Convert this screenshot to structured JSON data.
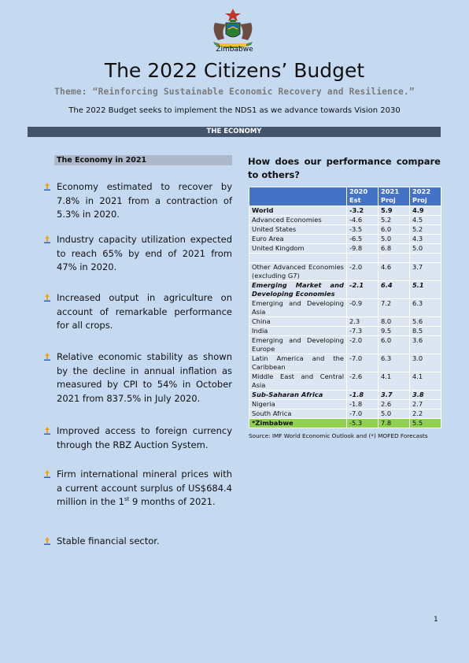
{
  "header": {
    "country": "Zimbabwe",
    "title": "The 2022 Citizens’ Budget",
    "theme": "Theme: “Reinforcing Sustainable Economic Recovery and Resilience.”",
    "subtitle": "The 2022 Budget seeks to implement the NDS1 as we advance towards Vision 2030"
  },
  "section_title": "THE ECONOMY",
  "left": {
    "heading": "The Economy in 2021",
    "bullets": [
      "Economy estimated to recover by 7.8% in 2021 from a contraction of 5.3% in 2020.",
      "Industry capacity utilization expected to reach 65% by end of 2021 from 47% in 2020.",
      "Increased output in agriculture on account of remarkable performance for all crops.",
      "Relative economic stability as shown by the decline in annual inflation as measured by CPI to 54% in October 2021 from 837.5% in July 2020.",
      "Improved access to foreign currency through the RBZ Auction System.",
      "Stable financial sector."
    ],
    "bullet6": {
      "pre": "Firm international mineral prices with a current account surplus of US$684.4 million in the 1",
      "sup": "st",
      "post": " 9 months of 2021."
    }
  },
  "right": {
    "heading": "How does our performance compare to others?",
    "table": {
      "columns": [
        "",
        "2020 Est",
        "2021 Proj",
        "2022 Proj"
      ],
      "rows": [
        {
          "label": "World",
          "v2020": "-3.2",
          "v2021": "5.9",
          "v2022": "4.9"
        },
        {
          "label": "Advanced Economies",
          "v2020": "-4.6",
          "v2021": "5.2",
          "v2022": "4.5"
        },
        {
          "label": "United States",
          "v2020": "-3.5",
          "v2021": "6.0",
          "v2022": "5.2"
        },
        {
          "label": "Euro Area",
          "v2020": "-6.5",
          "v2021": "5.0",
          "v2022": "4.3"
        },
        {
          "label": "United Kingdom",
          "v2020": "-9.8",
          "v2021": "6.8",
          "v2022": "5.0"
        },
        {
          "label": "",
          "v2020": "",
          "v2021": "",
          "v2022": ""
        },
        {
          "label": "Other Advanced Economies (excluding G7)",
          "v2020": "-2.0",
          "v2021": "4.6",
          "v2022": "3.7"
        },
        {
          "label": "Emerging Market and Developing Economies",
          "v2020": "-2.1",
          "v2021": "6.4",
          "v2022": "5.1"
        },
        {
          "label": "Emerging and Developing Asia",
          "v2020": "-0.9",
          "v2021": "7.2",
          "v2022": "6.3"
        },
        {
          "label": "China",
          "v2020": "2.3",
          "v2021": "8.0",
          "v2022": "5.6"
        },
        {
          "label": "India",
          "v2020": "-7.3",
          "v2021": "9.5",
          "v2022": "8.5"
        },
        {
          "label": "Emerging and Developing Europe",
          "v2020": "-2.0",
          "v2021": "6.0",
          "v2022": "3.6"
        },
        {
          "label": "Latin America and the Caribbean",
          "v2020": "-7.0",
          "v2021": "6.3",
          "v2022": "3.0"
        },
        {
          "label": "Middle East and Central Asia",
          "v2020": "-2.6",
          "v2021": "4.1",
          "v2022": "4.1"
        },
        {
          "label": "Sub-Saharan Africa",
          "v2020": "-1.8",
          "v2021": "3.7",
          "v2022": "3.8"
        },
        {
          "label": "Nigeria",
          "v2020": "-1.8",
          "v2021": "2.6",
          "v2022": "2.7"
        },
        {
          "label": "South Africa",
          "v2020": "-7.0",
          "v2021": "5.0",
          "v2022": "2.2"
        },
        {
          "label": "*Zimbabwe",
          "v2020": "-5.3",
          "v2021": "7.8",
          "v2022": "5.5"
        }
      ]
    },
    "source": "Source: IMF World Economic Outlook and (*) MOFED Forecasts"
  },
  "page_number": "1",
  "colors": {
    "page_background": "#c5d9f1",
    "section_bar": "#44546a",
    "table_header": "#4472c4",
    "table_cell": "#dce6f2",
    "zimbabwe_row": "#92d050",
    "left_heading_bg": "#adb9ca"
  }
}
